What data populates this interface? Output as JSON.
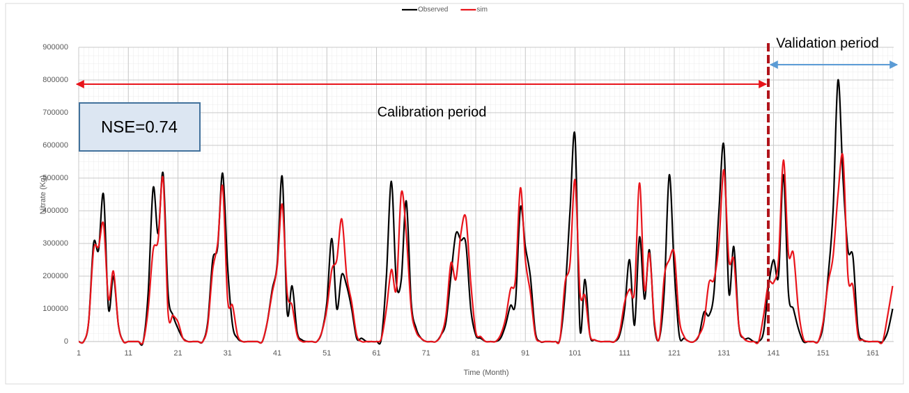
{
  "chart_data": {
    "type": "line",
    "x_label": "Time (Month)",
    "y_label": "Nitrate (Kg)",
    "annotations": {
      "nse": "NSE=0.74",
      "calibration": "Calibration period",
      "validation": "Validation period"
    },
    "x": [
      1,
      2,
      3,
      4,
      5,
      6,
      7,
      8,
      9,
      10,
      11,
      12,
      13,
      14,
      15,
      16,
      17,
      18,
      19,
      20,
      21,
      22,
      23,
      24,
      25,
      26,
      27,
      28,
      29,
      30,
      31,
      32,
      33,
      34,
      35,
      36,
      37,
      38,
      39,
      40,
      41,
      42,
      43,
      44,
      45,
      46,
      47,
      48,
      49,
      50,
      51,
      52,
      53,
      54,
      55,
      56,
      57,
      58,
      59,
      60,
      61,
      62,
      63,
      64,
      65,
      66,
      67,
      68,
      69,
      70,
      71,
      72,
      73,
      74,
      75,
      76,
      77,
      78,
      79,
      80,
      81,
      82,
      83,
      84,
      85,
      86,
      87,
      88,
      89,
      90,
      91,
      92,
      93,
      94,
      95,
      96,
      97,
      98,
      99,
      100,
      101,
      102,
      103,
      104,
      105,
      106,
      107,
      108,
      109,
      110,
      111,
      112,
      113,
      114,
      115,
      116,
      117,
      118,
      119,
      120,
      121,
      122,
      123,
      124,
      125,
      126,
      127,
      128,
      129,
      130,
      131,
      132,
      133,
      134,
      135,
      136,
      137,
      138,
      139,
      140,
      141,
      142,
      143,
      144,
      145,
      146,
      147,
      148,
      149,
      150,
      151,
      152,
      153,
      154,
      155,
      156,
      157,
      158,
      159,
      160,
      161,
      162,
      163,
      164,
      165
    ],
    "series": [
      {
        "name": "Observed",
        "color": "#000000",
        "values": [
          0,
          0,
          60000,
          300000,
          280000,
          450000,
          100000,
          200000,
          50000,
          0,
          0,
          0,
          0,
          0,
          150000,
          470000,
          330000,
          515000,
          150000,
          80000,
          40000,
          10000,
          0,
          0,
          0,
          0,
          60000,
          250000,
          290000,
          515000,
          230000,
          50000,
          10000,
          0,
          0,
          0,
          0,
          0,
          60000,
          160000,
          240000,
          505000,
          90000,
          170000,
          30000,
          5000,
          0,
          0,
          0,
          30000,
          120000,
          315000,
          100000,
          205000,
          170000,
          100000,
          10000,
          10000,
          0,
          0,
          0,
          10000,
          200000,
          490000,
          180000,
          190000,
          430000,
          120000,
          40000,
          10000,
          0,
          0,
          0,
          20000,
          60000,
          200000,
          330000,
          310000,
          300000,
          100000,
          20000,
          10000,
          0,
          0,
          0,
          10000,
          50000,
          110000,
          120000,
          410000,
          290000,
          200000,
          30000,
          0,
          0,
          0,
          0,
          10000,
          150000,
          400000,
          630000,
          40000,
          190000,
          20000,
          5000,
          0,
          0,
          0,
          0,
          20000,
          100000,
          250000,
          50000,
          320000,
          130000,
          280000,
          50000,
          10000,
          160000,
          510000,
          220000,
          20000,
          10000,
          0,
          0,
          20000,
          90000,
          80000,
          150000,
          400000,
          600000,
          150000,
          290000,
          50000,
          10000,
          10000,
          0,
          0,
          30000,
          170000,
          250000,
          200000,
          510000,
          150000,
          100000,
          40000,
          0,
          0,
          0,
          0,
          50000,
          200000,
          400000,
          800000,
          500000,
          280000,
          260000,
          40000,
          5000,
          0,
          0,
          0,
          0,
          30000,
          100000
        ]
      },
      {
        "name": "sim",
        "color": "#e8141b",
        "values": [
          0,
          0,
          60000,
          280000,
          290000,
          360000,
          130000,
          215000,
          50000,
          0,
          0,
          0,
          0,
          0,
          100000,
          280000,
          310000,
          500000,
          90000,
          80000,
          60000,
          10000,
          0,
          0,
          0,
          0,
          50000,
          220000,
          300000,
          475000,
          130000,
          110000,
          20000,
          0,
          0,
          0,
          0,
          0,
          60000,
          150000,
          230000,
          420000,
          150000,
          110000,
          20000,
          0,
          0,
          0,
          0,
          30000,
          100000,
          220000,
          250000,
          375000,
          200000,
          120000,
          20000,
          0,
          0,
          0,
          0,
          10000,
          100000,
          220000,
          160000,
          455000,
          330000,
          100000,
          30000,
          10000,
          0,
          0,
          0,
          20000,
          80000,
          240000,
          190000,
          330000,
          380000,
          180000,
          30000,
          15000,
          0,
          0,
          0,
          20000,
          70000,
          160000,
          190000,
          470000,
          250000,
          150000,
          20000,
          0,
          0,
          0,
          0,
          10000,
          180000,
          240000,
          495000,
          150000,
          140000,
          20000,
          5000,
          0,
          0,
          0,
          0,
          30000,
          120000,
          160000,
          155000,
          485000,
          160000,
          270000,
          60000,
          10000,
          200000,
          250000,
          270000,
          70000,
          15000,
          0,
          0,
          20000,
          60000,
          180000,
          190000,
          300000,
          525000,
          250000,
          250000,
          50000,
          10000,
          0,
          0,
          0,
          80000,
          180000,
          180000,
          250000,
          555000,
          270000,
          270000,
          100000,
          10000,
          0,
          0,
          0,
          60000,
          180000,
          260000,
          450000,
          565000,
          200000,
          170000,
          20000,
          5000,
          0,
          0,
          0,
          0,
          80000,
          170000
        ]
      }
    ],
    "xlim": [
      1,
      165
    ],
    "xticks": [
      1,
      11,
      21,
      31,
      41,
      51,
      61,
      71,
      81,
      91,
      101,
      111,
      121,
      131,
      141,
      151,
      161
    ],
    "ylim": [
      0,
      900000
    ],
    "yticks": [
      0,
      100000,
      200000,
      300000,
      400000,
      500000,
      600000,
      700000,
      800000,
      900000
    ],
    "grid": true,
    "legend": "top"
  }
}
